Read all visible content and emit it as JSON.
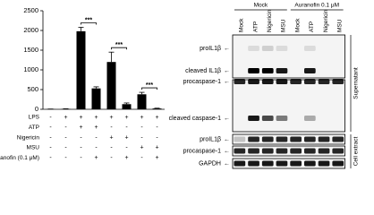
{
  "chart_data": {
    "type": "bar",
    "categories": [
      null,
      null,
      null,
      null,
      null,
      null,
      null,
      null
    ],
    "values": [
      5,
      10,
      1980,
      530,
      1200,
      130,
      380,
      20
    ],
    "errors": [
      2,
      3,
      100,
      40,
      250,
      30,
      50,
      8
    ],
    "color": "#000000",
    "ylim": [
      0,
      2500
    ],
    "yticks": [
      0,
      500,
      1000,
      1500,
      2000,
      2500
    ],
    "significance": [
      "***",
      "***",
      "***"
    ],
    "conditions": [
      {
        "name": "LPS",
        "signs": [
          "-",
          "+",
          "+",
          "+",
          "+",
          "+",
          "+",
          "+"
        ]
      },
      {
        "name": "ATP",
        "signs": [
          "-",
          "-",
          "+",
          "+",
          "-",
          "-",
          "-",
          "-"
        ]
      },
      {
        "name": "Nigericin",
        "signs": [
          "-",
          "-",
          "-",
          "-",
          "+",
          "+",
          "-",
          "-"
        ]
      },
      {
        "name": "MSU",
        "signs": [
          "-",
          "-",
          "-",
          "-",
          "-",
          "-",
          "+",
          "+"
        ]
      },
      {
        "name": "Auranofin (0.1 μM)",
        "signs": [
          "-",
          "-",
          "-",
          "+",
          "-",
          "+",
          "-",
          "+"
        ]
      }
    ]
  },
  "blot": {
    "groups": [
      {
        "label": "Mock",
        "lanes": [
          "Mock",
          "ATP",
          "Nigericin",
          "MSU"
        ]
      },
      {
        "label": "Auranofin 0.1 μM",
        "lanes": [
          "Mock",
          "ATP",
          "Nigericin",
          "MSU"
        ]
      }
    ],
    "rows": [
      "proIL1β",
      "cleaved IL1β",
      "procaspase-1",
      "cleaved caspase-1",
      "proIL1β",
      "procaspase-1",
      "GAPDH"
    ],
    "sections": [
      "Supernatant",
      "Cell extract"
    ]
  }
}
